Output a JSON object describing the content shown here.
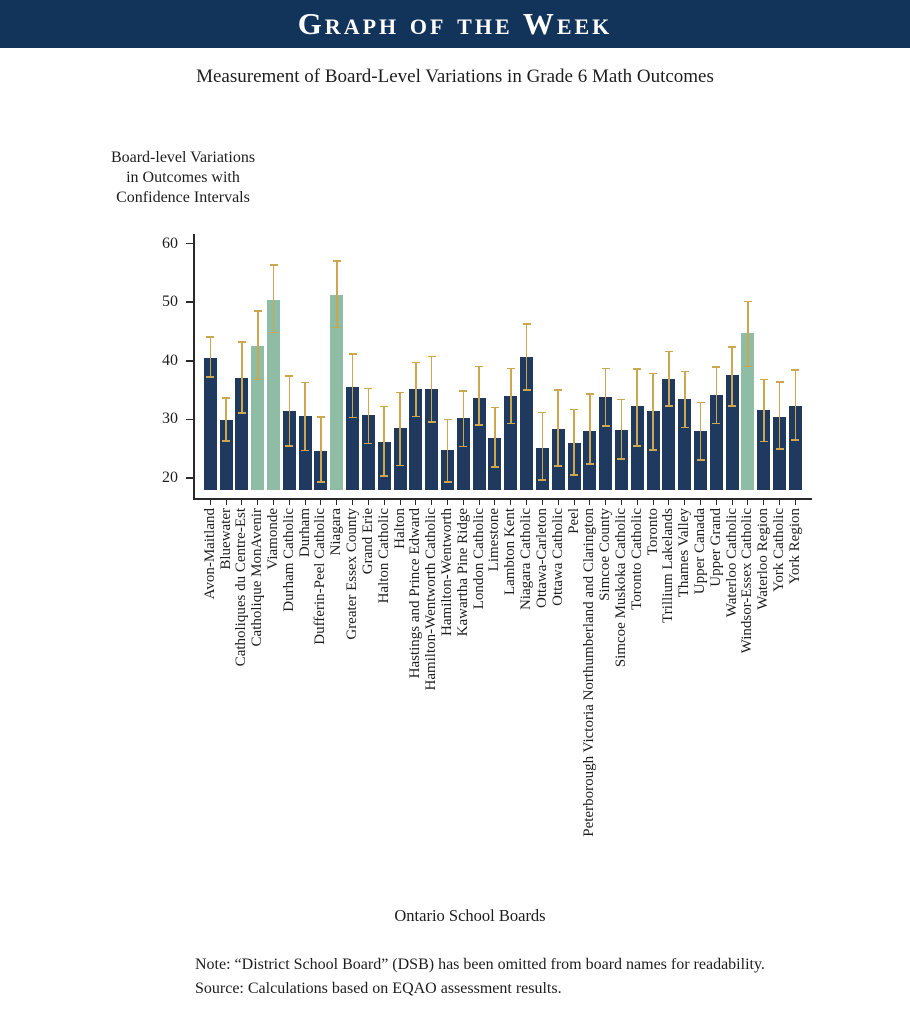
{
  "banner": {
    "title": "Graph of the Week",
    "bg_color": "#12335a",
    "text_color": "#ffffff"
  },
  "subtitle": "Measurement of Board-Level Variations in Grade 6 Math Outcomes",
  "chart_data": {
    "type": "bar",
    "title": "Measurement of Board-Level Variations in Grade 6 Math Outcomes",
    "ylabel_lines": [
      "Board-level Variations",
      "in Outcomes with",
      "Confidence Intervals"
    ],
    "xlabel": "Ontario School Boards",
    "yticks": [
      20,
      30,
      40,
      50,
      60
    ],
    "ylim": [
      18,
      60
    ],
    "baseline": 18,
    "grid": false,
    "legend": "none",
    "error_bars": true,
    "colors": {
      "bar": "#1f3a5e",
      "highlight": "#8fbca4",
      "error_bar": "#cda74f",
      "axis": "#2a2a2a"
    },
    "highlight_indices": [
      3,
      4,
      8,
      34
    ],
    "categories": [
      "Avon-Maitland",
      "Bluewater",
      "Catholiques du Centre-Est",
      "Catholique MonAvenir",
      "Viamonde",
      "Durham Catholic",
      "Durham",
      "Dufferin-Peel Catholic",
      "Niagara",
      "Greater Essex County",
      "Grand Erie",
      "Halton Catholic",
      "Halton",
      "Hastings and Prince Edward",
      "Hamilton-Wentworth Catholic",
      "Hamilton-Wentworth",
      "Kawartha Pine Ridge",
      "London Catholic",
      "Limestone",
      "Lambton Kent",
      "Niagara Catholic",
      "Ottawa-Carleton",
      "Ottawa Catholic",
      "Peel",
      "Peterborough Victoria Northumberland and Clarington",
      "Simcoe County",
      "Simcoe Muskoka Catholic",
      "Toronto Catholic",
      "Toronto",
      "Trillium Lakelands",
      "Thames Valley",
      "Upper Canada",
      "Upper Grand",
      "Waterloo Catholic",
      "Windsor-Essex Catholic",
      "Waterloo Region",
      "York Catholic",
      "York Region"
    ],
    "values": [
      40.5,
      29.9,
      37.0,
      42.6,
      50.4,
      31.5,
      30.5,
      24.6,
      51.2,
      35.6,
      30.7,
      26.2,
      28.5,
      35.1,
      35.2,
      24.7,
      30.2,
      33.7,
      26.9,
      34.0,
      40.6,
      25.2,
      28.4,
      26.0,
      28.1,
      33.9,
      28.2,
      32.2,
      31.5,
      36.9,
      33.4,
      28.0,
      34.2,
      37.5,
      44.8,
      31.6,
      30.4,
      32.3
    ],
    "ci_low": [
      37.2,
      26.3,
      31.1,
      36.8,
      44.8,
      25.5,
      24.7,
      19.3,
      45.7,
      30.3,
      25.9,
      20.3,
      22.1,
      30.5,
      29.6,
      19.3,
      25.4,
      29.0,
      21.9,
      29.3,
      35.0,
      19.7,
      22.0,
      20.5,
      22.4,
      28.9,
      23.2,
      25.5,
      24.8,
      32.3,
      28.6,
      23.1,
      29.3,
      32.3,
      39.0,
      26.2,
      24.9,
      26.5
    ],
    "ci_high": [
      44.1,
      33.6,
      43.2,
      48.5,
      56.3,
      37.4,
      36.3,
      30.4,
      57.0,
      41.2,
      35.3,
      32.2,
      34.6,
      39.7,
      40.7,
      30.0,
      34.8,
      39.0,
      32.0,
      38.7,
      46.3,
      31.2,
      35.0,
      31.7,
      34.3,
      38.7,
      33.4,
      38.6,
      37.8,
      41.6,
      38.2,
      32.9,
      38.9,
      42.3,
      50.1,
      36.8,
      36.4,
      38.4
    ]
  },
  "footer": {
    "note": "Note: “District School Board” (DSB) has been omitted from board names for readability.",
    "source": "Source: Calculations based on EQAO assessment results."
  }
}
